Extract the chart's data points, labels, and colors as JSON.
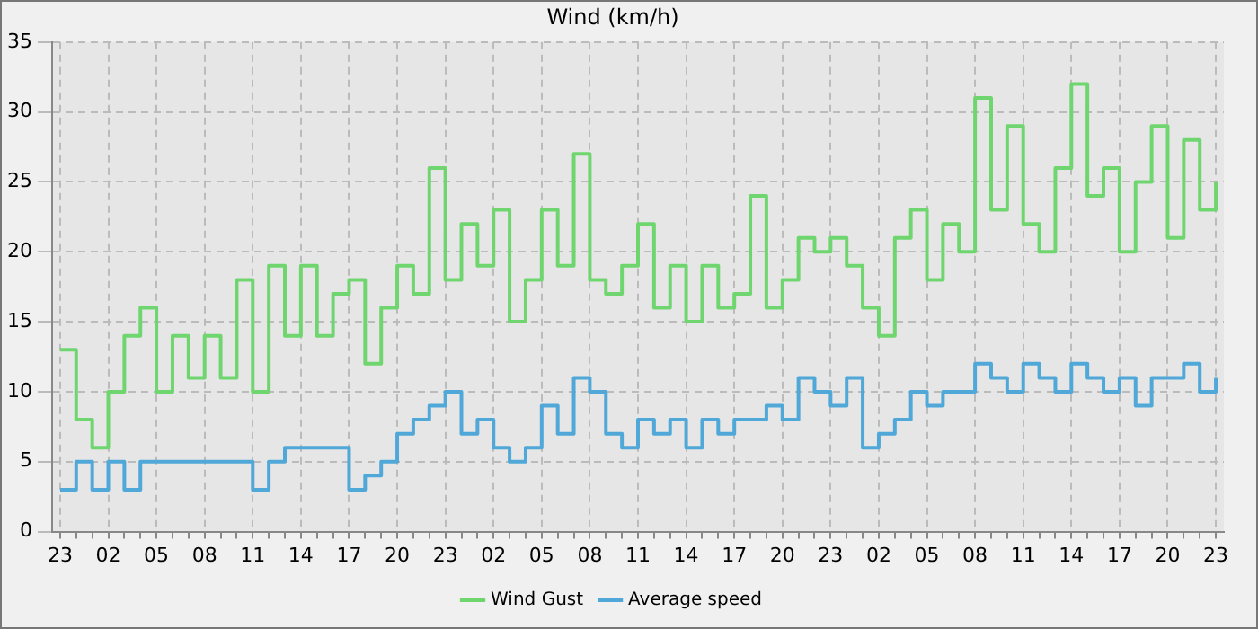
{
  "chart_data": {
    "type": "step",
    "title": "Wind (km/h)",
    "categories": [
      "23",
      null,
      null,
      "02",
      null,
      null,
      "05",
      null,
      null,
      "08",
      null,
      null,
      "11",
      null,
      null,
      "14",
      null,
      null,
      "17",
      null,
      null,
      "20",
      null,
      null,
      "23",
      null,
      null,
      "02",
      null,
      null,
      "05",
      null,
      null,
      "08",
      null,
      null,
      "11",
      null,
      null,
      "14",
      null,
      null,
      "17",
      null,
      null,
      "20",
      null,
      null,
      "23",
      null,
      null,
      "02",
      null,
      null,
      "05",
      null,
      null,
      "08",
      null,
      null,
      "11",
      null,
      null,
      "14",
      null,
      null,
      "17",
      null,
      null,
      "20",
      null,
      null,
      "23"
    ],
    "series": [
      {
        "name": "Wind Gust",
        "color": "#6fd66f",
        "values": [
          13,
          8,
          6,
          10,
          14,
          16,
          10,
          14,
          11,
          14,
          11,
          18,
          10,
          19,
          14,
          19,
          14,
          17,
          18,
          12,
          16,
          19,
          17,
          26,
          18,
          22,
          19,
          23,
          15,
          18,
          23,
          19,
          27,
          18,
          17,
          19,
          22,
          16,
          19,
          15,
          19,
          16,
          17,
          24,
          16,
          18,
          21,
          20,
          21,
          19,
          16,
          14,
          21,
          23,
          18,
          22,
          20,
          31,
          23,
          29,
          22,
          20,
          26,
          32,
          24,
          26,
          20,
          25,
          29,
          21,
          28,
          23,
          25
        ]
      },
      {
        "name": "Average speed",
        "color": "#4fa8d8",
        "values": [
          3,
          5,
          3,
          5,
          3,
          5,
          5,
          5,
          5,
          5,
          5,
          5,
          3,
          5,
          6,
          6,
          6,
          6,
          3,
          4,
          5,
          7,
          8,
          9,
          10,
          7,
          8,
          6,
          5,
          6,
          9,
          7,
          11,
          10,
          7,
          6,
          8,
          7,
          8,
          6,
          8,
          7,
          8,
          8,
          9,
          8,
          11,
          10,
          9,
          11,
          6,
          7,
          8,
          10,
          9,
          10,
          10,
          12,
          11,
          10,
          12,
          11,
          10,
          12,
          11,
          10,
          11,
          9,
          11,
          11,
          12,
          10,
          11
        ]
      }
    ],
    "ylim": [
      0,
      35
    ],
    "yticks": [
      0,
      5,
      10,
      15,
      20,
      25,
      30,
      35
    ],
    "grid": true,
    "legend": "bottom",
    "marker": "none"
  }
}
